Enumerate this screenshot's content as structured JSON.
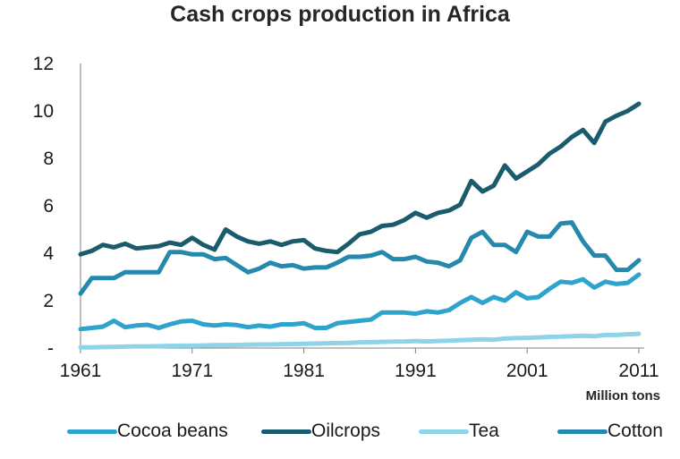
{
  "chart_data": {
    "type": "line",
    "title": "Cash crops production in Africa",
    "unit_label": "Million tons",
    "ylim": [
      0,
      12
    ],
    "yticks": [
      {
        "value": 0,
        "label": "-"
      },
      {
        "value": 2,
        "label": "2"
      },
      {
        "value": 4,
        "label": "4"
      },
      {
        "value": 6,
        "label": "6"
      },
      {
        "value": 8,
        "label": "8"
      },
      {
        "value": 10,
        "label": "10"
      },
      {
        "value": 12,
        "label": "12"
      }
    ],
    "xlim": [
      1961,
      2011
    ],
    "xticks": [
      1961,
      1971,
      1981,
      1991,
      2001,
      2011
    ],
    "x": [
      1961,
      1962,
      1963,
      1964,
      1965,
      1966,
      1967,
      1968,
      1969,
      1970,
      1971,
      1972,
      1973,
      1974,
      1975,
      1976,
      1977,
      1978,
      1979,
      1980,
      1981,
      1982,
      1983,
      1984,
      1985,
      1986,
      1987,
      1988,
      1989,
      1990,
      1991,
      1992,
      1993,
      1994,
      1995,
      1996,
      1997,
      1998,
      1999,
      2000,
      2001,
      2002,
      2003,
      2004,
      2005,
      2006,
      2007,
      2008,
      2009,
      2010,
      2011
    ],
    "series": [
      {
        "name": "Cocoa beans",
        "color": "#2ea3cc",
        "values": [
          0.8,
          0.85,
          0.9,
          1.15,
          0.88,
          0.95,
          0.98,
          0.85,
          1.0,
          1.12,
          1.15,
          1.0,
          0.95,
          1.0,
          0.97,
          0.88,
          0.95,
          0.9,
          1.0,
          1.0,
          1.05,
          0.85,
          0.85,
          1.05,
          1.1,
          1.15,
          1.2,
          1.5,
          1.5,
          1.5,
          1.45,
          1.55,
          1.5,
          1.6,
          1.9,
          2.15,
          1.9,
          2.15,
          2.0,
          2.35,
          2.1,
          2.15,
          2.5,
          2.8,
          2.75,
          2.9,
          2.55,
          2.8,
          2.7,
          2.75,
          3.1
        ]
      },
      {
        "name": "Oilcrops",
        "color": "#1a5b6e",
        "values": [
          3.95,
          4.1,
          4.35,
          4.25,
          4.4,
          4.2,
          4.25,
          4.3,
          4.45,
          4.35,
          4.65,
          4.35,
          4.15,
          5.0,
          4.7,
          4.5,
          4.4,
          4.5,
          4.35,
          4.5,
          4.55,
          4.2,
          4.1,
          4.05,
          4.4,
          4.8,
          4.9,
          5.15,
          5.2,
          5.4,
          5.7,
          5.5,
          5.7,
          5.8,
          6.05,
          7.05,
          6.6,
          6.85,
          7.7,
          7.15,
          7.45,
          7.75,
          8.2,
          8.5,
          8.9,
          9.2,
          8.65,
          9.55,
          9.8,
          10.0,
          10.3
        ]
      },
      {
        "name": "Tea",
        "color": "#8fd3e8",
        "values": [
          0.03,
          0.03,
          0.04,
          0.05,
          0.06,
          0.07,
          0.07,
          0.08,
          0.09,
          0.1,
          0.1,
          0.11,
          0.12,
          0.12,
          0.13,
          0.14,
          0.15,
          0.15,
          0.16,
          0.17,
          0.18,
          0.19,
          0.2,
          0.21,
          0.22,
          0.24,
          0.25,
          0.26,
          0.27,
          0.28,
          0.3,
          0.28,
          0.3,
          0.31,
          0.33,
          0.35,
          0.37,
          0.35,
          0.4,
          0.42,
          0.43,
          0.45,
          0.47,
          0.48,
          0.5,
          0.52,
          0.5,
          0.55,
          0.55,
          0.58,
          0.6
        ]
      },
      {
        "name": "Cotton",
        "color": "#2588ad",
        "values": [
          2.3,
          2.95,
          2.95,
          2.95,
          3.2,
          3.2,
          3.2,
          3.2,
          4.05,
          4.05,
          3.95,
          3.95,
          3.75,
          3.8,
          3.5,
          3.2,
          3.35,
          3.6,
          3.45,
          3.5,
          3.35,
          3.4,
          3.4,
          3.6,
          3.85,
          3.85,
          3.9,
          4.05,
          3.75,
          3.75,
          3.85,
          3.65,
          3.6,
          3.45,
          3.7,
          4.65,
          4.9,
          4.35,
          4.35,
          4.05,
          4.9,
          4.7,
          4.7,
          5.25,
          5.3,
          4.5,
          3.9,
          3.9,
          3.3,
          3.3,
          3.7
        ]
      }
    ]
  }
}
